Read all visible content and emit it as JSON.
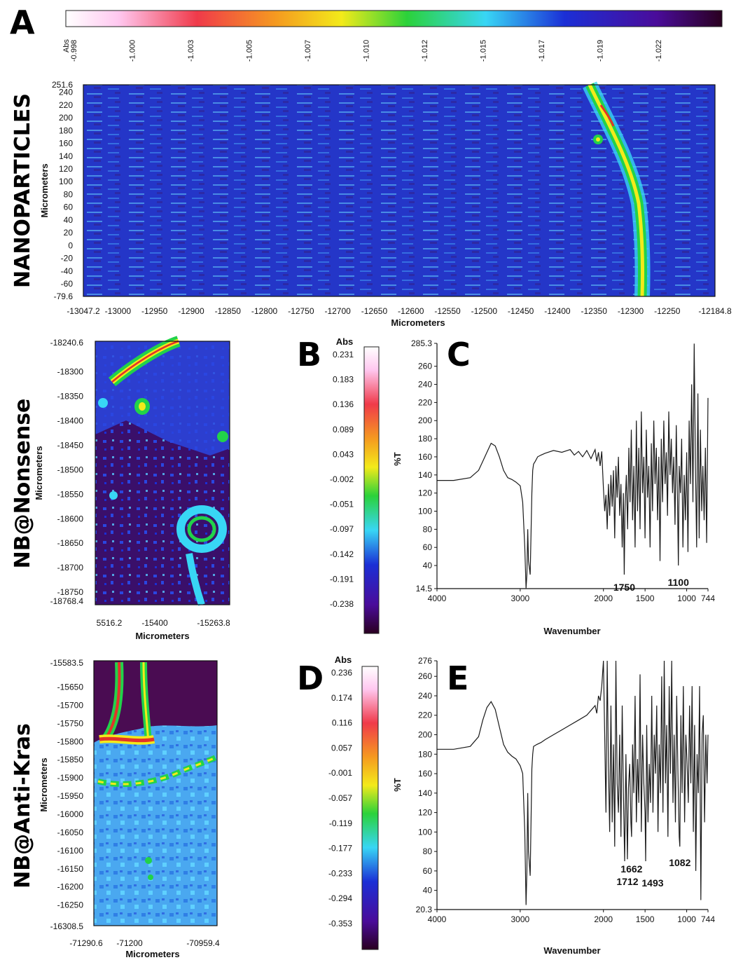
{
  "colors": {
    "map_low": "#4a0c52",
    "map_mid": "#1b2fd6",
    "map_cyan": "#38d6f5",
    "map_green": "#22d24a",
    "map_yellow": "#f3ea1a",
    "map_red": "#e3322a",
    "map_high": "#ffc8f0",
    "trace": "#1a1a1a"
  },
  "row_labels": [
    "NANOPARTICLES",
    "NB@Nonsense",
    "NB@Anti-Kras"
  ],
  "panel_letters": [
    "A",
    "B",
    "C",
    "D",
    "E"
  ],
  "chart_data": [
    {
      "id": "colorbar-A",
      "type": "heatmap",
      "orientation": "horizontal",
      "unit": "Abs",
      "tick_labels": [
        "-0.998",
        "-1.000",
        "-1.003",
        "-1.005",
        "-1.007",
        "-1.010",
        "-1.012",
        "-1.015",
        "-1.017",
        "-1.019",
        "-1.022"
      ]
    },
    {
      "id": "map-A",
      "type": "heatmap",
      "xlabel": "Micrometers",
      "ylabel": "Micrometers",
      "xlim": [
        -13047.2,
        -12184.8
      ],
      "ylim": [
        -79.6,
        251.6
      ],
      "x_ticks": [
        "-13047.2",
        "-13000",
        "-12950",
        "-12900",
        "-12850",
        "-12800",
        "-12750",
        "-12700",
        "-12650",
        "-12600",
        "-12550",
        "-12500",
        "-12450",
        "-12400",
        "-12350",
        "-12300",
        "-12250",
        "-12184.8"
      ],
      "y_ticks": [
        "251.6",
        "240",
        "220",
        "200",
        "180",
        "160",
        "140",
        "120",
        "100",
        "80",
        "60",
        "40",
        "20",
        "0",
        "-20",
        "-40",
        "-60",
        "-79.6"
      ]
    },
    {
      "id": "map-NB-Nonsense",
      "type": "heatmap",
      "xlabel": "Micrometers",
      "ylabel": "Micrometers",
      "x_ticks": [
        "5516.2",
        "-15400",
        "-15263.8"
      ],
      "y_ticks": [
        "-18240.6",
        "-18300",
        "-18350",
        "-18400",
        "-18450",
        "-18500",
        "-18550",
        "-18600",
        "-18650",
        "-18700",
        "-18750",
        "-18768.4"
      ]
    },
    {
      "id": "colorbar-B",
      "type": "heatmap",
      "orientation": "vertical",
      "unit": "Abs",
      "tick_labels": [
        "0.231",
        "0.183",
        "0.136",
        "0.089",
        "0.043",
        "-0.002",
        "-0.051",
        "-0.097",
        "-0.142",
        "-0.191",
        "-0.238"
      ]
    },
    {
      "id": "spectrum-C",
      "type": "line",
      "xlabel": "Wavenumber",
      "ylabel": "%T",
      "xlim": [
        4000,
        744
      ],
      "ylim": [
        14.5,
        285.3
      ],
      "x_ticks": [
        "4000",
        "3000",
        "2000",
        "1500",
        "1000",
        "744"
      ],
      "y_ticks": [
        "285.3",
        "260",
        "240",
        "220",
        "200",
        "180",
        "160",
        "140",
        "120",
        "100",
        "80",
        "60",
        "40",
        "14.5"
      ],
      "annotations": [
        {
          "text": "1750",
          "x": 1750
        },
        {
          "text": "1100",
          "x": 1100
        }
      ],
      "series": [
        {
          "x": [
            4000,
            3800,
            3600,
            3500,
            3450,
            3400,
            3350,
            3300,
            3250,
            3200,
            3150,
            3100,
            3050,
            3000,
            2970,
            2945,
            2930,
            2920,
            2910,
            2900,
            2880,
            2860,
            2850,
            2840,
            2820,
            2790,
            2750,
            2700,
            2600,
            2500,
            2400,
            2350,
            2300,
            2250,
            2200,
            2150,
            2100,
            2080,
            2060,
            2040,
            2020,
            2000,
            1985,
            1970,
            1955,
            1940,
            1925,
            1910,
            1895,
            1880,
            1865,
            1850,
            1835,
            1820,
            1805,
            1790,
            1775,
            1760,
            1750,
            1740,
            1725,
            1710,
            1695,
            1680,
            1665,
            1650,
            1635,
            1620,
            1605,
            1590,
            1575,
            1560,
            1545,
            1530,
            1515,
            1500,
            1485,
            1470,
            1455,
            1440,
            1425,
            1410,
            1395,
            1380,
            1365,
            1350,
            1335,
            1320,
            1305,
            1290,
            1275,
            1260,
            1245,
            1230,
            1215,
            1200,
            1185,
            1170,
            1155,
            1140,
            1125,
            1110,
            1100,
            1090,
            1075,
            1060,
            1045,
            1030,
            1015,
            1000,
            985,
            970,
            955,
            940,
            925,
            910,
            895,
            880,
            865,
            850,
            835,
            820,
            805,
            790,
            775,
            760,
            744
          ],
          "y": [
            134,
            134,
            137,
            145,
            155,
            165,
            175,
            172,
            160,
            145,
            137,
            135,
            132,
            128,
            110,
            60,
            15,
            30,
            80,
            45,
            30,
            120,
            145,
            152,
            155,
            160,
            162,
            164,
            167,
            165,
            168,
            162,
            166,
            160,
            167,
            158,
            168,
            155,
            165,
            150,
            166,
            125,
            100,
            118,
            80,
            130,
            95,
            140,
            105,
            145,
            70,
            150,
            115,
            160,
            95,
            130,
            60,
            120,
            30,
            105,
            140,
            80,
            170,
            110,
            190,
            90,
            150,
            60,
            200,
            100,
            170,
            80,
            210,
            120,
            160,
            70,
            190,
            115,
            150,
            60,
            175,
            100,
            200,
            130,
            170,
            90,
            160,
            45,
            180,
            110,
            200,
            130,
            165,
            95,
            210,
            140,
            180,
            120,
            160,
            85,
            195,
            110,
            40,
            150,
            120,
            180,
            60,
            140,
            90,
            165,
            55,
            200,
            130,
            240,
            110,
            285,
            150,
            60,
            230,
            70,
            190,
            100,
            150,
            90,
            170,
            65,
            225
          ]
        }
      ]
    },
    {
      "id": "map-NB-Anti-Kras",
      "type": "heatmap",
      "xlabel": "Micrometers",
      "ylabel": "Micrometers",
      "x_ticks": [
        "-71290.6",
        "-71200",
        "-70959.4"
      ],
      "y_ticks": [
        "-15583.5",
        "-15650",
        "-15700",
        "-15750",
        "-15800",
        "-15850",
        "-15900",
        "-15950",
        "-16000",
        "-16050",
        "-16100",
        "-16150",
        "-16200",
        "-16250",
        "-16308.5"
      ]
    },
    {
      "id": "colorbar-D",
      "type": "heatmap",
      "orientation": "vertical",
      "unit": "Abs",
      "tick_labels": [
        "0.236",
        "0.174",
        "0.116",
        "0.057",
        "-0.001",
        "-0.057",
        "-0.119",
        "-0.177",
        "-0.233",
        "-0.294",
        "-0.353"
      ]
    },
    {
      "id": "spectrum-E",
      "type": "line",
      "xlabel": "Wavenumber",
      "ylabel": "%T",
      "xlim": [
        4000,
        744
      ],
      "ylim": [
        20.3,
        276
      ],
      "x_ticks": [
        "4000",
        "3000",
        "2000",
        "1500",
        "1000",
        "744"
      ],
      "y_ticks": [
        "276",
        "260",
        "240",
        "220",
        "200",
        "180",
        "160",
        "140",
        "120",
        "100",
        "80",
        "60",
        "40",
        "20.3"
      ],
      "annotations": [
        {
          "text": "1662",
          "x": 1662
        },
        {
          "text": "1712",
          "x": 1712
        },
        {
          "text": "1493",
          "x": 1493
        },
        {
          "text": "1082",
          "x": 1082
        }
      ],
      "series": [
        {
          "x": [
            4000,
            3800,
            3600,
            3500,
            3450,
            3400,
            3350,
            3300,
            3250,
            3200,
            3150,
            3100,
            3050,
            3000,
            2970,
            2945,
            2930,
            2920,
            2910,
            2900,
            2880,
            2860,
            2850,
            2840,
            2800,
            2750,
            2700,
            2600,
            2500,
            2400,
            2300,
            2200,
            2150,
            2100,
            2080,
            2060,
            2040,
            2020,
            2000,
            1985,
            1970,
            1955,
            1940,
            1925,
            1910,
            1895,
            1880,
            1865,
            1850,
            1835,
            1820,
            1805,
            1790,
            1775,
            1760,
            1745,
            1730,
            1712,
            1700,
            1685,
            1670,
            1662,
            1650,
            1635,
            1620,
            1605,
            1590,
            1575,
            1560,
            1545,
            1530,
            1515,
            1500,
            1493,
            1480,
            1465,
            1450,
            1435,
            1420,
            1405,
            1390,
            1375,
            1360,
            1345,
            1330,
            1315,
            1300,
            1285,
            1270,
            1255,
            1240,
            1225,
            1210,
            1195,
            1180,
            1165,
            1150,
            1135,
            1120,
            1105,
            1090,
            1082,
            1070,
            1055,
            1040,
            1025,
            1010,
            995,
            980,
            965,
            950,
            935,
            920,
            905,
            890,
            875,
            860,
            845,
            830,
            815,
            800,
            785,
            770,
            755,
            744
          ],
          "y": [
            185,
            185,
            188,
            198,
            215,
            228,
            234,
            226,
            208,
            190,
            182,
            178,
            175,
            168,
            160,
            100,
            25,
            60,
            140,
            80,
            55,
            165,
            180,
            188,
            190,
            192,
            195,
            200,
            205,
            210,
            215,
            220,
            225,
            230,
            222,
            240,
            235,
            250,
            276,
            200,
            120,
            276,
            170,
            100,
            230,
            110,
            190,
            85,
            276,
            150,
            120,
            200,
            95,
            230,
            140,
            70,
            180,
            72,
            145,
            170,
            110,
            95,
            190,
            140,
            240,
            110,
            175,
            130,
            262,
            100,
            200,
            150,
            120,
            70,
            210,
            110,
            170,
            130,
            240,
            120,
            200,
            160,
            230,
            100,
            190,
            140,
            260,
            120,
            276,
            150,
            210,
            95,
            250,
            160,
            276,
            130,
            200,
            110,
            240,
            160,
            95,
            85,
            220,
            140,
            250,
            110,
            200,
            170,
            130,
            230,
            150,
            250,
            100,
            210,
            60,
            180,
            140,
            250,
            30,
            200,
            220,
            110,
            200,
            150,
            200
          ]
        }
      ]
    }
  ]
}
